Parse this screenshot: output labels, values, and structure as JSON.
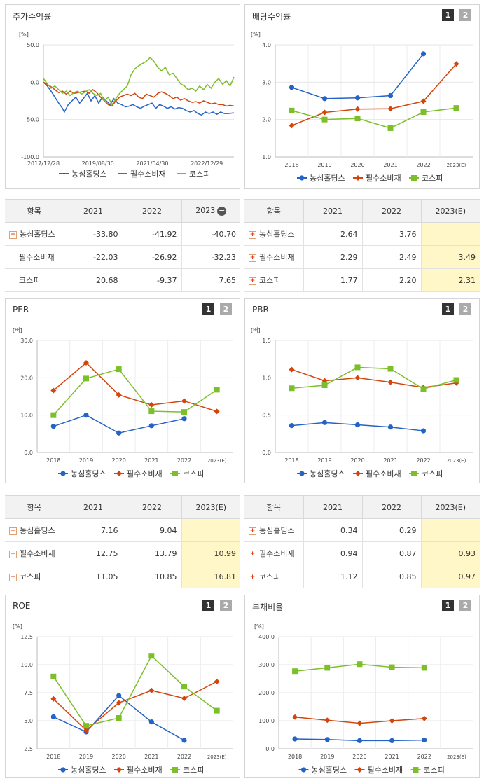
{
  "colors": {
    "nongshim": "#2563c7",
    "staples": "#d4450c",
    "kospi": "#7cbf2a"
  },
  "pager": {
    "p1": "1",
    "p2": "2"
  },
  "legend": [
    "농심홀딩스",
    "필수소비재",
    "코스피"
  ],
  "chart_data": [
    {
      "id": "stock",
      "type": "line",
      "title": "주가수익률",
      "unit": "[%]",
      "ylim": [
        -100,
        50
      ],
      "yticks": [
        "50.0",
        "0.0",
        "-50.0",
        "-100.0"
      ],
      "ytick_values": [
        50,
        0,
        -50,
        -100
      ],
      "xticks": [
        "2017/12/28",
        "2019/08/30",
        "2021/04/30",
        "2022/12/29"
      ],
      "xtick_positions": [
        0,
        0.2857,
        0.5714,
        0.8571
      ],
      "series": [
        {
          "name": "농심홀딩스",
          "color": "nongshim",
          "x": [
            0,
            0.02,
            0.04,
            0.06,
            0.08,
            0.1,
            0.11,
            0.13,
            0.15,
            0.17,
            0.19,
            0.21,
            0.23,
            0.25,
            0.27,
            0.29,
            0.31,
            0.33,
            0.35,
            0.37,
            0.39,
            0.41,
            0.43,
            0.45,
            0.47,
            0.49,
            0.51,
            0.53,
            0.55,
            0.57,
            0.59,
            0.61,
            0.63,
            0.65,
            0.67,
            0.69,
            0.71,
            0.73,
            0.75,
            0.77,
            0.79,
            0.81,
            0.83,
            0.85,
            0.87,
            0.89,
            0.91,
            0.93,
            0.95,
            0.97,
            1.0
          ],
          "y": [
            0,
            -5,
            -12,
            -20,
            -28,
            -35,
            -40,
            -30,
            -25,
            -20,
            -28,
            -22,
            -15,
            -25,
            -18,
            -28,
            -20,
            -25,
            -30,
            -22,
            -28,
            -30,
            -33,
            -32,
            -30,
            -33,
            -35,
            -32,
            -30,
            -28,
            -35,
            -30,
            -32,
            -35,
            -33,
            -36,
            -34,
            -35,
            -38,
            -40,
            -38,
            -42,
            -44,
            -40,
            -42,
            -40,
            -43,
            -40,
            -42,
            -42,
            -41
          ]
        },
        {
          "name": "필수소비재",
          "color": "staples",
          "x": [
            0,
            0.02,
            0.04,
            0.06,
            0.08,
            0.1,
            0.12,
            0.14,
            0.16,
            0.18,
            0.2,
            0.22,
            0.24,
            0.26,
            0.28,
            0.3,
            0.32,
            0.34,
            0.36,
            0.38,
            0.4,
            0.42,
            0.44,
            0.46,
            0.48,
            0.5,
            0.52,
            0.54,
            0.56,
            0.58,
            0.6,
            0.62,
            0.64,
            0.66,
            0.68,
            0.7,
            0.72,
            0.74,
            0.76,
            0.78,
            0.8,
            0.82,
            0.84,
            0.86,
            0.88,
            0.9,
            0.92,
            0.94,
            0.96,
            0.98,
            1.0
          ],
          "y": [
            0,
            -3,
            -6,
            -10,
            -14,
            -12,
            -16,
            -12,
            -15,
            -14,
            -13,
            -12,
            -15,
            -10,
            -14,
            -20,
            -25,
            -30,
            -32,
            -25,
            -20,
            -18,
            -16,
            -18,
            -15,
            -20,
            -22,
            -16,
            -18,
            -20,
            -15,
            -13,
            -15,
            -18,
            -22,
            -20,
            -24,
            -22,
            -25,
            -27,
            -26,
            -28,
            -25,
            -27,
            -29,
            -28,
            -30,
            -30,
            -32,
            -31,
            -32
          ]
        },
        {
          "name": "코스피",
          "color": "kospi",
          "x": [
            0,
            0.02,
            0.04,
            0.06,
            0.08,
            0.1,
            0.12,
            0.14,
            0.16,
            0.18,
            0.2,
            0.22,
            0.24,
            0.26,
            0.28,
            0.3,
            0.32,
            0.34,
            0.36,
            0.38,
            0.4,
            0.42,
            0.44,
            0.46,
            0.48,
            0.5,
            0.52,
            0.54,
            0.56,
            0.58,
            0.6,
            0.62,
            0.64,
            0.66,
            0.68,
            0.7,
            0.72,
            0.74,
            0.76,
            0.78,
            0.8,
            0.82,
            0.84,
            0.86,
            0.88,
            0.9,
            0.92,
            0.94,
            0.96,
            0.98,
            1.0
          ],
          "y": [
            5,
            -2,
            -8,
            -5,
            -10,
            -15,
            -12,
            -18,
            -14,
            -12,
            -16,
            -13,
            -10,
            -15,
            -18,
            -15,
            -25,
            -20,
            -30,
            -22,
            -15,
            -10,
            -5,
            10,
            18,
            22,
            25,
            28,
            33,
            28,
            20,
            15,
            20,
            10,
            12,
            5,
            -2,
            -5,
            -10,
            -8,
            -12,
            -5,
            -10,
            -3,
            -8,
            0,
            5,
            -3,
            2,
            -5,
            7
          ]
        }
      ]
    },
    {
      "id": "dividend",
      "type": "line",
      "title": "배당수익률",
      "unit": "[%]",
      "ylim": [
        1.0,
        4.0
      ],
      "yticks": [
        "4.0",
        "3.0",
        "2.0",
        "1.0"
      ],
      "ytick_values": [
        4,
        3,
        2,
        1
      ],
      "categories": [
        "2018",
        "2019",
        "2020",
        "2021",
        "2022",
        "2023(E)"
      ],
      "series": [
        {
          "name": "농심홀딩스",
          "color": "nongshim",
          "marker": "circle",
          "values": [
            2.86,
            2.56,
            2.58,
            2.64,
            3.76,
            null
          ]
        },
        {
          "name": "필수소비재",
          "color": "staples",
          "marker": "diamond",
          "values": [
            1.84,
            2.19,
            2.28,
            2.29,
            2.49,
            3.49
          ]
        },
        {
          "name": "코스피",
          "color": "kospi",
          "marker": "square",
          "values": [
            2.24,
            2.0,
            2.03,
            1.77,
            2.2,
            2.31
          ]
        }
      ]
    },
    {
      "id": "per",
      "type": "line",
      "title": "PER",
      "unit": "[배]",
      "ylim": [
        0,
        30
      ],
      "yticks": [
        "30.0",
        "20.0",
        "10.0",
        "0.0"
      ],
      "ytick_values": [
        30,
        20,
        10,
        0
      ],
      "categories": [
        "2018",
        "2019",
        "2020",
        "2021",
        "2022",
        "2023(E)"
      ],
      "series": [
        {
          "name": "농심홀딩스",
          "color": "nongshim",
          "marker": "circle",
          "values": [
            7.0,
            10.0,
            5.2,
            7.16,
            9.04,
            null
          ]
        },
        {
          "name": "필수소비재",
          "color": "staples",
          "marker": "diamond",
          "values": [
            16.6,
            24.0,
            15.4,
            12.75,
            13.79,
            10.99
          ]
        },
        {
          "name": "코스피",
          "color": "kospi",
          "marker": "square",
          "values": [
            10.0,
            19.8,
            22.3,
            11.05,
            10.85,
            16.81
          ]
        }
      ]
    },
    {
      "id": "pbr",
      "type": "line",
      "title": "PBR",
      "unit": "[배]",
      "ylim": [
        0,
        1.5
      ],
      "yticks": [
        "1.5",
        "1.0",
        "0.5",
        "0.0"
      ],
      "ytick_values": [
        1.5,
        1.0,
        0.5,
        0
      ],
      "categories": [
        "2018",
        "2019",
        "2020",
        "2021",
        "2022",
        "2023(E)"
      ],
      "series": [
        {
          "name": "농심홀딩스",
          "color": "nongshim",
          "marker": "circle",
          "values": [
            0.36,
            0.4,
            0.37,
            0.34,
            0.29,
            null
          ]
        },
        {
          "name": "필수소비재",
          "color": "staples",
          "marker": "diamond",
          "values": [
            1.11,
            0.96,
            1.0,
            0.94,
            0.87,
            0.93
          ]
        },
        {
          "name": "코스피",
          "color": "kospi",
          "marker": "square",
          "values": [
            0.86,
            0.9,
            1.14,
            1.12,
            0.85,
            0.97
          ]
        }
      ]
    },
    {
      "id": "roe",
      "type": "line",
      "title": "ROE",
      "unit": "[%]",
      "ylim": [
        2.5,
        12.5
      ],
      "yticks": [
        "12.5",
        "10.0",
        "7.5",
        "5.0",
        "2.5"
      ],
      "ytick_values": [
        12.5,
        10,
        7.5,
        5,
        2.5
      ],
      "categories": [
        "2018",
        "2019",
        "2020",
        "2021",
        "2022",
        "2023(E)"
      ],
      "series": [
        {
          "name": "농심홀딩스",
          "color": "nongshim",
          "marker": "circle",
          "values": [
            5.35,
            4.0,
            7.25,
            4.9,
            3.25,
            null
          ]
        },
        {
          "name": "필수소비재",
          "color": "staples",
          "marker": "diamond",
          "values": [
            6.95,
            4.15,
            6.6,
            7.7,
            7.0,
            8.5
          ]
        },
        {
          "name": "코스피",
          "color": "kospi",
          "marker": "square",
          "values": [
            8.95,
            4.55,
            5.25,
            10.8,
            8.05,
            5.9
          ]
        }
      ]
    },
    {
      "id": "debt",
      "type": "line",
      "title": "부채비율",
      "unit": "[%]",
      "ylim": [
        0,
        400
      ],
      "yticks": [
        "400.0",
        "300.0",
        "200.0",
        "100.0",
        "0.0"
      ],
      "ytick_values": [
        400,
        300,
        200,
        100,
        0
      ],
      "categories": [
        "2018",
        "2019",
        "2020",
        "2021",
        "2022",
        "2023(E)"
      ],
      "series": [
        {
          "name": "농심홀딩스",
          "color": "nongshim",
          "marker": "circle",
          "values": [
            35,
            33,
            29,
            29,
            31,
            null
          ]
        },
        {
          "name": "필수소비재",
          "color": "staples",
          "marker": "diamond",
          "values": [
            113,
            102,
            91,
            100,
            108,
            null
          ]
        },
        {
          "name": "코스피",
          "color": "kospi",
          "marker": "square",
          "values": [
            277,
            289,
            302,
            291,
            289,
            null
          ]
        }
      ]
    }
  ],
  "tables": {
    "stock": {
      "headers": [
        "항목",
        "2021",
        "2022",
        "2023"
      ],
      "rows": [
        {
          "label": "농심홀딩스",
          "plus": true,
          "values": [
            "-33.80",
            "-41.92",
            "-40.70"
          ]
        },
        {
          "label": "필수소비재",
          "plus": false,
          "values": [
            "-22.03",
            "-26.92",
            "-32.23"
          ]
        },
        {
          "label": "코스피",
          "plus": false,
          "values": [
            "20.68",
            "-9.37",
            "7.65"
          ]
        }
      ]
    },
    "dividend": {
      "headers": [
        "항목",
        "2021",
        "2022",
        "2023(E)"
      ],
      "rows": [
        {
          "label": "농심홀딩스",
          "plus": true,
          "values": [
            "2.64",
            "3.76",
            ""
          ]
        },
        {
          "label": "필수소비재",
          "plus": true,
          "values": [
            "2.29",
            "2.49",
            "3.49"
          ]
        },
        {
          "label": "코스피",
          "plus": true,
          "values": [
            "1.77",
            "2.20",
            "2.31"
          ]
        }
      ]
    },
    "per": {
      "headers": [
        "항목",
        "2021",
        "2022",
        "2023(E)"
      ],
      "rows": [
        {
          "label": "농심홀딩스",
          "plus": true,
          "values": [
            "7.16",
            "9.04",
            ""
          ]
        },
        {
          "label": "필수소비재",
          "plus": true,
          "values": [
            "12.75",
            "13.79",
            "10.99"
          ]
        },
        {
          "label": "코스피",
          "plus": true,
          "values": [
            "11.05",
            "10.85",
            "16.81"
          ]
        }
      ]
    },
    "pbr": {
      "headers": [
        "항목",
        "2021",
        "2022",
        "2023(E)"
      ],
      "rows": [
        {
          "label": "농심홀딩스",
          "plus": true,
          "values": [
            "0.34",
            "0.29",
            ""
          ]
        },
        {
          "label": "필수소비재",
          "plus": true,
          "values": [
            "0.94",
            "0.87",
            "0.93"
          ]
        },
        {
          "label": "코스피",
          "plus": true,
          "values": [
            "1.12",
            "0.85",
            "0.97"
          ]
        }
      ]
    }
  }
}
